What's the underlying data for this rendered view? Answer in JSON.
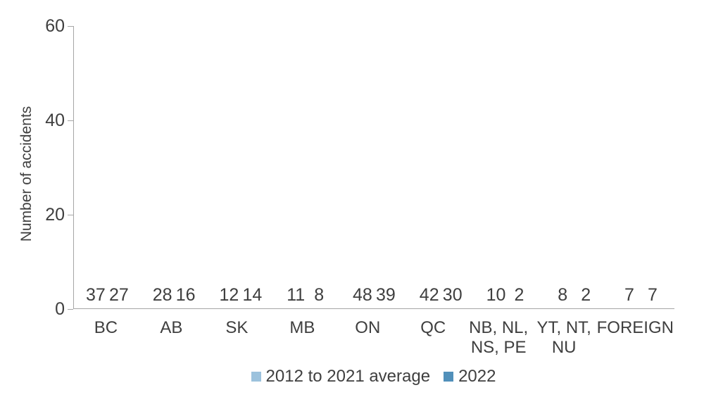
{
  "chart_data": {
    "type": "bar",
    "title": "",
    "ylabel": "Number of accidents",
    "xlabel": "",
    "ylim": [
      0,
      60
    ],
    "yticks": [
      0,
      20,
      40,
      60
    ],
    "grid": false,
    "legend_position": "bottom-center",
    "categories": [
      "BC",
      "AB",
      "SK",
      "MB",
      "ON",
      "QC",
      "NB, NL,\nNS, PE",
      "YT, NT,\nNU",
      "FOREIGN"
    ],
    "series": [
      {
        "name": "2012 to 2021 average",
        "color": "#9cc2dd",
        "values": [
          37,
          28,
          12,
          11,
          48,
          42,
          10,
          8,
          7
        ]
      },
      {
        "name": "2022",
        "color": "#5190ba",
        "values": [
          27,
          16,
          14,
          8,
          39,
          30,
          2,
          2,
          7
        ]
      }
    ],
    "colors": {
      "text": "#3f3f3f",
      "axis": "#a6a6a6"
    }
  }
}
